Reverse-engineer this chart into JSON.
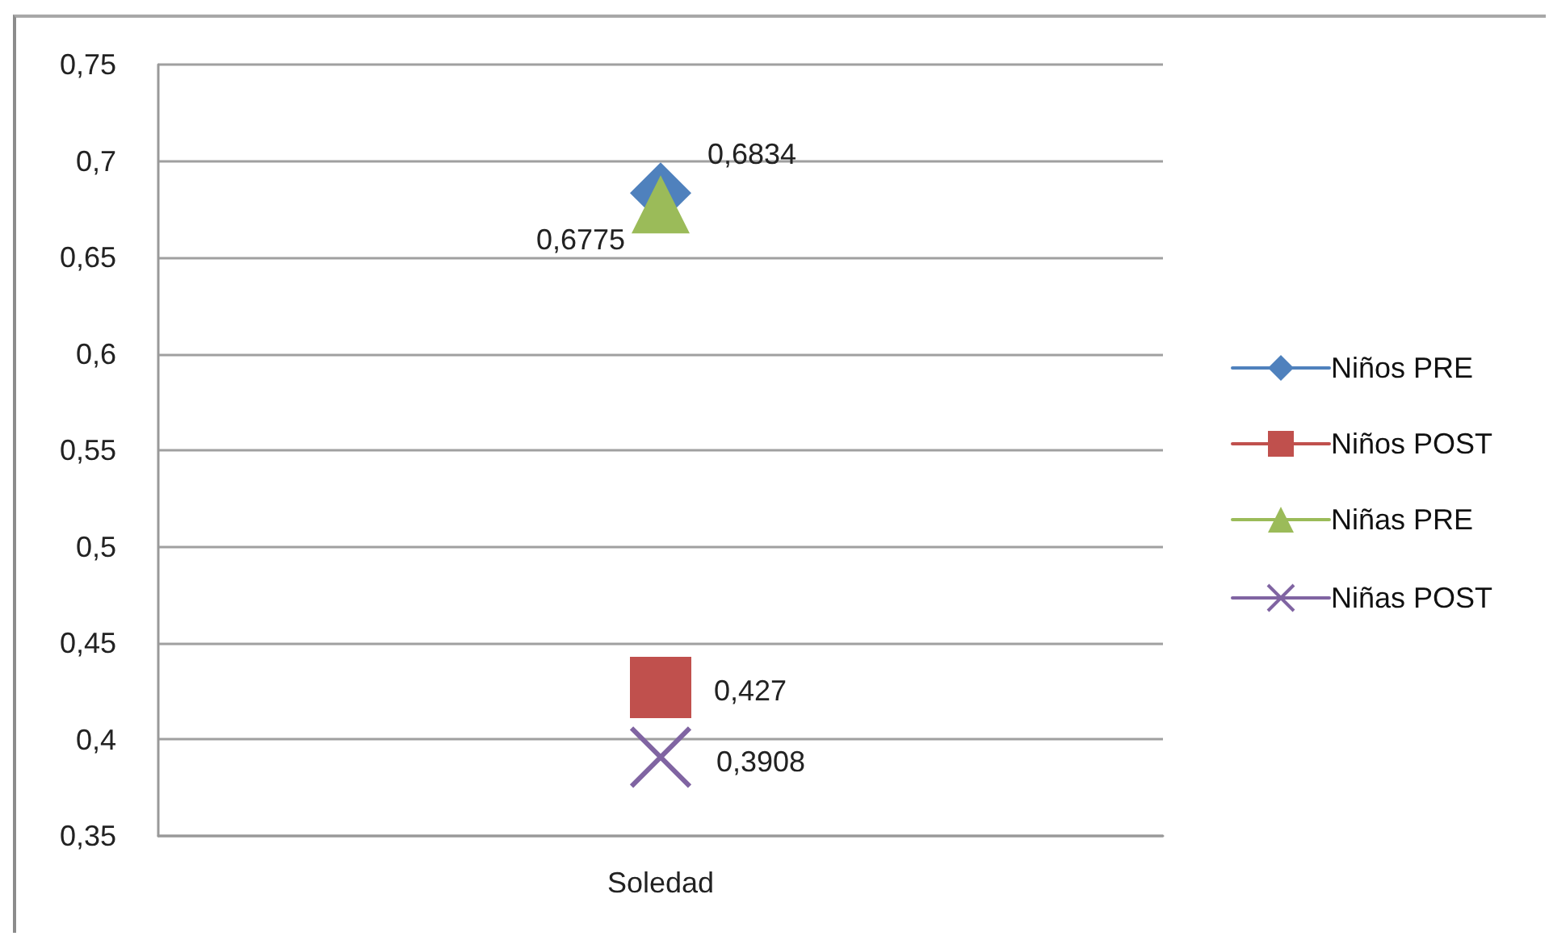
{
  "chart_data": {
    "type": "line",
    "categories": [
      "Soledad"
    ],
    "series": [
      {
        "name": "Niños PRE",
        "color": "#4f81bd",
        "marker": "diamond",
        "values": [
          0.6834
        ],
        "value_labels": [
          "0,6834"
        ]
      },
      {
        "name": "Niños POST",
        "color": "#c0504d",
        "marker": "square",
        "values": [
          0.427
        ],
        "value_labels": [
          "0,427"
        ]
      },
      {
        "name": "Niñas PRE",
        "color": "#9bbb59",
        "marker": "triangle",
        "values": [
          0.6775
        ],
        "value_labels": [
          "0,6775"
        ]
      },
      {
        "name": "Niñas POST",
        "color": "#8064a2",
        "marker": "cross",
        "values": [
          0.3908
        ],
        "value_labels": [
          "0,3908"
        ]
      }
    ],
    "ylim": [
      0.35,
      0.75
    ],
    "yticks": [
      {
        "value": 0.35,
        "label": "0,35"
      },
      {
        "value": 0.4,
        "label": "0,4"
      },
      {
        "value": 0.45,
        "label": "0,45"
      },
      {
        "value": 0.5,
        "label": "0,5"
      },
      {
        "value": 0.55,
        "label": "0,55"
      },
      {
        "value": 0.6,
        "label": "0,6"
      },
      {
        "value": 0.65,
        "label": "0,65"
      },
      {
        "value": 0.7,
        "label": "0,7"
      },
      {
        "value": 0.75,
        "label": "0,75"
      }
    ],
    "grid": "y",
    "legend": "right"
  }
}
